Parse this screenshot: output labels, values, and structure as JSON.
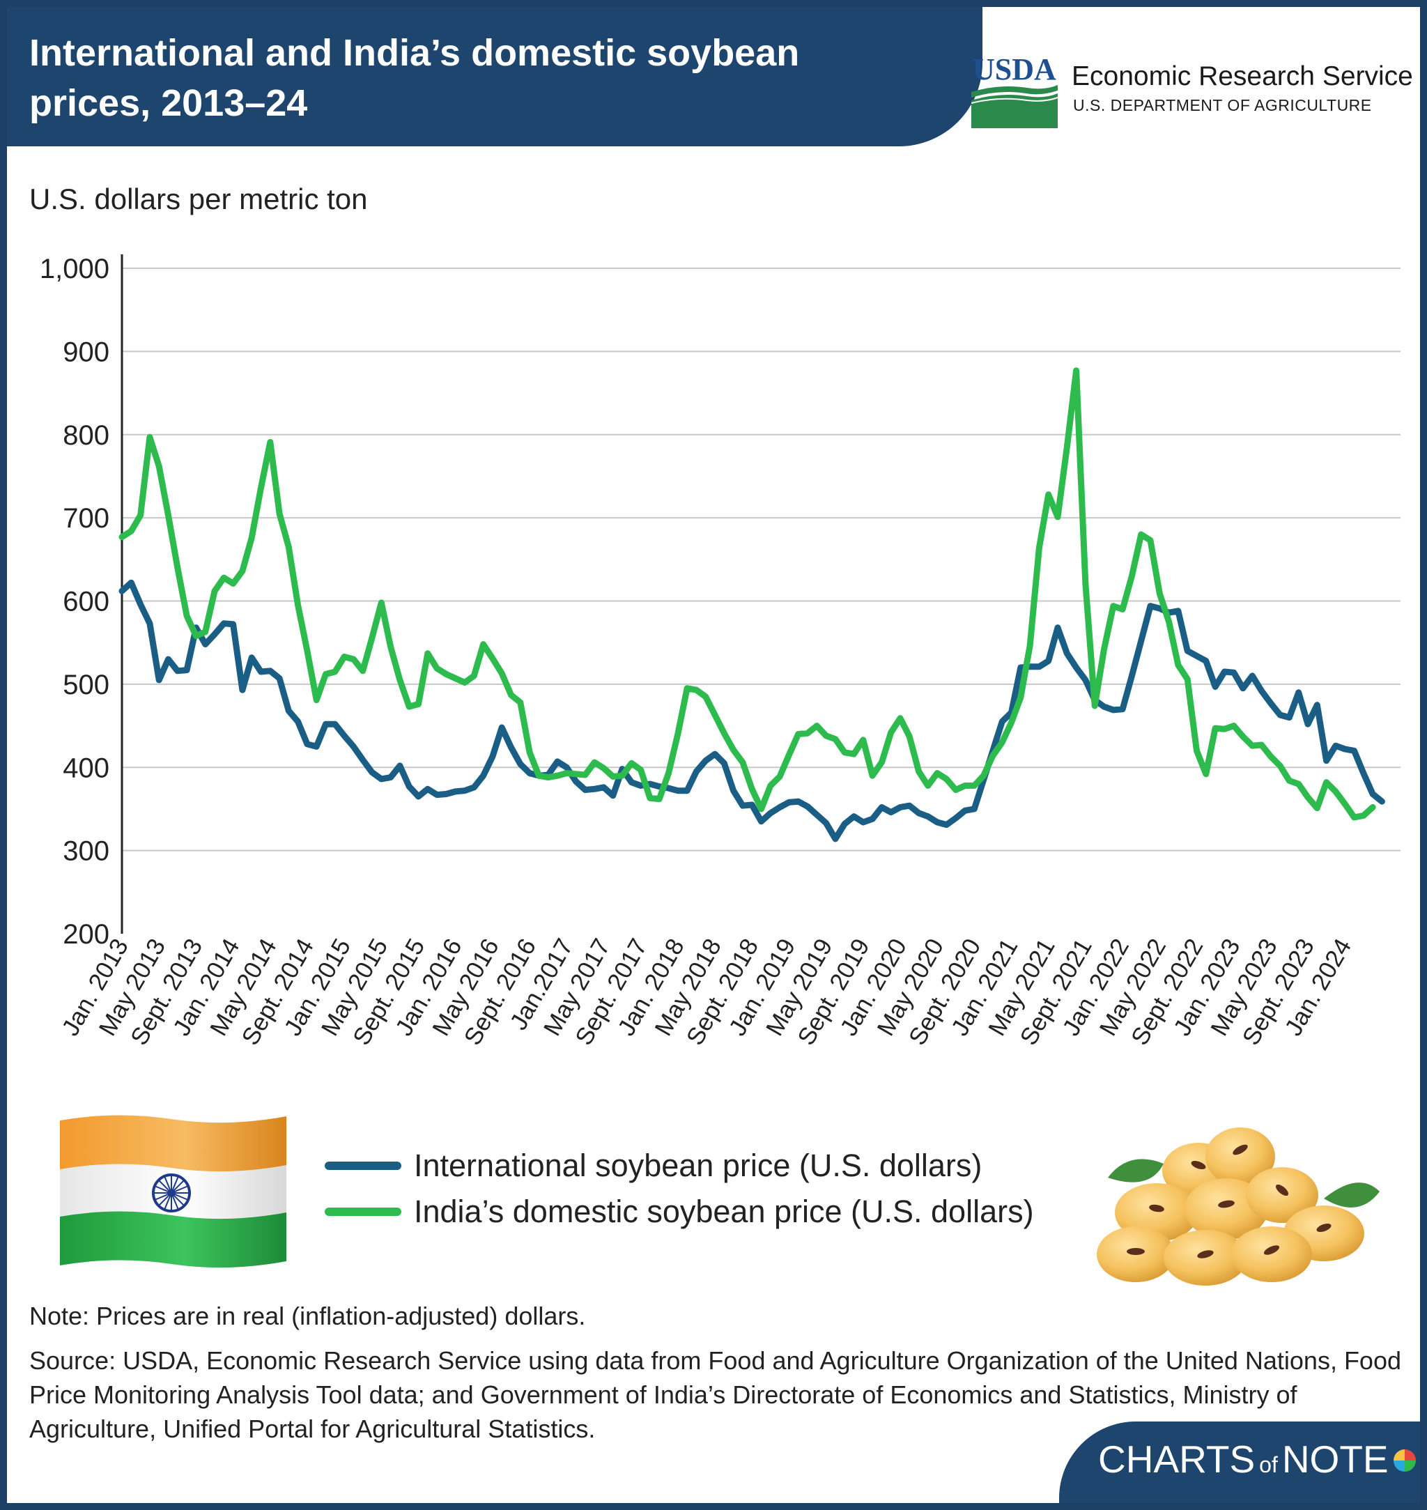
{
  "header": {
    "title": "International and India’s domestic soybean prices, 2013–24",
    "usda_logo_text": "USDA",
    "agency_name": "Economic Research Service",
    "department": "U.S. DEPARTMENT OF AGRICULTURE"
  },
  "footer": {
    "note": "Note: Prices are in real (inflation-adjusted) dollars.",
    "source": "Source: USDA, Economic Research Service using data from Food and Agriculture Organization of the United Nations, Food Price Monitoring Analysis Tool data; and Government of India’s Directorate of Economics and Statistics, Ministry of Agriculture, Unified Portal for Agricultural Statistics.",
    "brand_left": "CHARTS",
    "brand_mid": "of",
    "brand_right": "NOTE"
  },
  "colors": {
    "navy": "#1d456d",
    "international": "#1a5e86",
    "india": "#2dbb4e",
    "grid": "#c8c8c8"
  },
  "icons": [
    "india-flag-icon",
    "soybeans-icon",
    "usda-logo-icon",
    "pie-chart-icon"
  ],
  "chart_data": {
    "type": "line",
    "title": "International and India’s domestic soybean prices, 2013–24",
    "ylabel": "U.S. dollars per metric ton",
    "xlabel": "",
    "ylim": [
      200,
      1000
    ],
    "yticks": [
      200,
      300,
      400,
      500,
      600,
      700,
      800,
      900,
      1000
    ],
    "ytick_labels": [
      "200",
      "300",
      "400",
      "500",
      "600",
      "700",
      "800",
      "900",
      "1,000"
    ],
    "xrange_months": [
      0,
      138
    ],
    "grid": "horizontal",
    "legend_position": "bottom-center",
    "xticks": [
      {
        "month": 0,
        "label": "Jan. 2013"
      },
      {
        "month": 4,
        "label": "May 2013"
      },
      {
        "month": 8,
        "label": "Sept. 2013"
      },
      {
        "month": 12,
        "label": "Jan. 2014"
      },
      {
        "month": 16,
        "label": "May 2014"
      },
      {
        "month": 20,
        "label": "Sept. 2014"
      },
      {
        "month": 24,
        "label": "Jan. 2015"
      },
      {
        "month": 28,
        "label": "May 2015"
      },
      {
        "month": 32,
        "label": "Sept. 2015"
      },
      {
        "month": 36,
        "label": "Jan. 2016"
      },
      {
        "month": 40,
        "label": "May 2016"
      },
      {
        "month": 44,
        "label": "Sept. 2016"
      },
      {
        "month": 48,
        "label": "Jan.2017"
      },
      {
        "month": 52,
        "label": "May 2017"
      },
      {
        "month": 56,
        "label": "Sept. 2017"
      },
      {
        "month": 60,
        "label": "Jan. 2018"
      },
      {
        "month": 64,
        "label": "May 2018"
      },
      {
        "month": 68,
        "label": "Sept. 2018"
      },
      {
        "month": 72,
        "label": "Jan. 2019"
      },
      {
        "month": 76,
        "label": "May 2019"
      },
      {
        "month": 80,
        "label": "Sept. 2019"
      },
      {
        "month": 84,
        "label": "Jan. 2020"
      },
      {
        "month": 88,
        "label": "May 2020"
      },
      {
        "month": 92,
        "label": "Sept. 2020"
      },
      {
        "month": 96,
        "label": "Jan. 2021"
      },
      {
        "month": 100,
        "label": "May 2021"
      },
      {
        "month": 104,
        "label": "Sept. 2021"
      },
      {
        "month": 108,
        "label": "Jan. 2022"
      },
      {
        "month": 112,
        "label": "May 2022"
      },
      {
        "month": 116,
        "label": "Sept. 2022"
      },
      {
        "month": 120,
        "label": "Jan. 2023"
      },
      {
        "month": 124,
        "label": "May 2023"
      },
      {
        "month": 128,
        "label": "Sept. 2023"
      },
      {
        "month": 132,
        "label": "Jan. 2024"
      }
    ],
    "series": [
      {
        "name": "International soybean price (U.S. dollars)",
        "color": "#1a5e86",
        "points": [
          [
            0,
            612
          ],
          [
            1,
            622
          ],
          [
            2,
            596
          ],
          [
            3,
            573
          ],
          [
            4,
            505
          ],
          [
            5,
            530
          ],
          [
            6,
            516
          ],
          [
            7,
            517
          ],
          [
            8,
            568
          ],
          [
            9,
            548
          ],
          [
            10,
            560
          ],
          [
            11,
            573
          ],
          [
            12,
            572
          ],
          [
            13,
            493
          ],
          [
            14,
            532
          ],
          [
            15,
            515
          ],
          [
            16,
            516
          ],
          [
            17,
            507
          ],
          [
            18,
            468
          ],
          [
            19,
            455
          ],
          [
            20,
            428
          ],
          [
            21,
            425
          ],
          [
            22,
            452
          ],
          [
            23,
            452
          ],
          [
            24,
            438
          ],
          [
            25,
            425
          ],
          [
            26,
            409
          ],
          [
            27,
            394
          ],
          [
            28,
            386
          ],
          [
            29,
            388
          ],
          [
            30,
            402
          ],
          [
            31,
            377
          ],
          [
            32,
            365
          ],
          [
            33,
            374
          ],
          [
            34,
            367
          ],
          [
            35,
            368
          ],
          [
            36,
            371
          ],
          [
            37,
            372
          ],
          [
            38,
            376
          ],
          [
            39,
            390
          ],
          [
            40,
            413
          ],
          [
            41,
            448
          ],
          [
            42,
            424
          ],
          [
            43,
            404
          ],
          [
            44,
            393
          ],
          [
            45,
            390
          ],
          [
            46,
            391
          ],
          [
            47,
            407
          ],
          [
            48,
            400
          ],
          [
            49,
            383
          ],
          [
            50,
            373
          ],
          [
            51,
            374
          ],
          [
            52,
            376
          ],
          [
            53,
            366
          ],
          [
            54,
            398
          ],
          [
            55,
            382
          ],
          [
            56,
            378
          ],
          [
            57,
            380
          ],
          [
            58,
            377
          ],
          [
            59,
            375
          ],
          [
            60,
            372
          ],
          [
            61,
            372
          ],
          [
            62,
            395
          ],
          [
            63,
            408
          ],
          [
            64,
            416
          ],
          [
            65,
            405
          ],
          [
            66,
            372
          ],
          [
            67,
            354
          ],
          [
            68,
            355
          ],
          [
            69,
            335
          ],
          [
            70,
            345
          ],
          [
            71,
            352
          ],
          [
            72,
            358
          ],
          [
            73,
            359
          ],
          [
            74,
            353
          ],
          [
            75,
            343
          ],
          [
            76,
            333
          ],
          [
            77,
            314
          ],
          [
            78,
            332
          ],
          [
            79,
            341
          ],
          [
            80,
            334
          ],
          [
            81,
            338
          ],
          [
            82,
            352
          ],
          [
            83,
            346
          ],
          [
            84,
            352
          ],
          [
            85,
            354
          ],
          [
            86,
            345
          ],
          [
            87,
            341
          ],
          [
            88,
            334
          ],
          [
            89,
            331
          ],
          [
            90,
            339
          ],
          [
            91,
            348
          ],
          [
            92,
            350
          ],
          [
            93,
            385
          ],
          [
            94,
            420
          ],
          [
            95,
            455
          ],
          [
            96,
            466
          ],
          [
            97,
            520
          ],
          [
            98,
            521
          ],
          [
            99,
            521
          ],
          [
            100,
            528
          ],
          [
            101,
            568
          ],
          [
            102,
            537
          ],
          [
            103,
            520
          ],
          [
            104,
            505
          ],
          [
            105,
            481
          ],
          [
            106,
            473
          ],
          [
            107,
            469
          ],
          [
            108,
            470
          ],
          [
            109,
            510
          ],
          [
            110,
            552
          ],
          [
            111,
            594
          ],
          [
            112,
            591
          ],
          [
            113,
            586
          ],
          [
            114,
            588
          ],
          [
            115,
            540
          ],
          [
            116,
            534
          ],
          [
            117,
            528
          ],
          [
            118,
            497
          ],
          [
            119,
            515
          ],
          [
            120,
            514
          ],
          [
            121,
            495
          ],
          [
            122,
            510
          ],
          [
            123,
            492
          ],
          [
            124,
            477
          ],
          [
            125,
            463
          ],
          [
            126,
            460
          ],
          [
            127,
            490
          ],
          [
            128,
            452
          ],
          [
            129,
            475
          ],
          [
            130,
            408
          ],
          [
            131,
            426
          ],
          [
            132,
            422
          ],
          [
            133,
            420
          ],
          [
            134,
            393
          ],
          [
            135,
            368
          ],
          [
            136,
            359
          ]
        ]
      },
      {
        "name": "India’s domestic soybean price (U.S. dollars)",
        "color": "#2dbb4e",
        "points": [
          [
            0,
            677
          ],
          [
            1,
            684
          ],
          [
            2,
            703
          ],
          [
            3,
            797
          ],
          [
            4,
            762
          ],
          [
            5,
            703
          ],
          [
            6,
            640
          ],
          [
            7,
            582
          ],
          [
            8,
            558
          ],
          [
            9,
            563
          ],
          [
            10,
            612
          ],
          [
            11,
            628
          ],
          [
            12,
            621
          ],
          [
            13,
            636
          ],
          [
            14,
            676
          ],
          [
            15,
            736
          ],
          [
            16,
            791
          ],
          [
            17,
            705
          ],
          [
            18,
            665
          ],
          [
            19,
            595
          ],
          [
            20,
            540
          ],
          [
            21,
            481
          ],
          [
            22,
            512
          ],
          [
            23,
            515
          ],
          [
            24,
            533
          ],
          [
            25,
            530
          ],
          [
            26,
            516
          ],
          [
            27,
            556
          ],
          [
            28,
            598
          ],
          [
            29,
            545
          ],
          [
            30,
            505
          ],
          [
            31,
            473
          ],
          [
            32,
            476
          ],
          [
            33,
            537
          ],
          [
            34,
            519
          ],
          [
            35,
            512
          ],
          [
            36,
            507
          ],
          [
            37,
            502
          ],
          [
            38,
            510
          ],
          [
            39,
            548
          ],
          [
            40,
            531
          ],
          [
            41,
            513
          ],
          [
            42,
            487
          ],
          [
            43,
            478
          ],
          [
            44,
            418
          ],
          [
            45,
            390
          ],
          [
            46,
            388
          ],
          [
            47,
            390
          ],
          [
            48,
            393
          ],
          [
            49,
            392
          ],
          [
            50,
            391
          ],
          [
            51,
            406
          ],
          [
            52,
            399
          ],
          [
            53,
            389
          ],
          [
            54,
            390
          ],
          [
            55,
            405
          ],
          [
            56,
            397
          ],
          [
            57,
            363
          ],
          [
            58,
            362
          ],
          [
            59,
            393
          ],
          [
            60,
            440
          ],
          [
            61,
            495
          ],
          [
            62,
            493
          ],
          [
            63,
            485
          ],
          [
            64,
            463
          ],
          [
            65,
            441
          ],
          [
            66,
            421
          ],
          [
            67,
            406
          ],
          [
            68,
            374
          ],
          [
            69,
            350
          ],
          [
            70,
            378
          ],
          [
            71,
            389
          ],
          [
            72,
            415
          ],
          [
            73,
            440
          ],
          [
            74,
            441
          ],
          [
            75,
            450
          ],
          [
            76,
            438
          ],
          [
            77,
            434
          ],
          [
            78,
            418
          ],
          [
            79,
            416
          ],
          [
            80,
            433
          ],
          [
            81,
            390
          ],
          [
            82,
            406
          ],
          [
            83,
            442
          ],
          [
            84,
            459
          ],
          [
            85,
            437
          ],
          [
            86,
            395
          ],
          [
            87,
            378
          ],
          [
            88,
            393
          ],
          [
            89,
            386
          ],
          [
            90,
            373
          ],
          [
            91,
            378
          ],
          [
            92,
            378
          ],
          [
            93,
            390
          ],
          [
            94,
            414
          ],
          [
            95,
            430
          ],
          [
            96,
            454
          ],
          [
            97,
            484
          ],
          [
            98,
            546
          ],
          [
            99,
            664
          ],
          [
            100,
            728
          ],
          [
            101,
            701
          ],
          [
            102,
            785
          ],
          [
            103,
            877
          ],
          [
            104,
            620
          ],
          [
            105,
            474
          ],
          [
            106,
            542
          ],
          [
            107,
            594
          ],
          [
            108,
            590
          ],
          [
            109,
            630
          ],
          [
            110,
            680
          ],
          [
            111,
            673
          ],
          [
            112,
            609
          ],
          [
            113,
            575
          ],
          [
            114,
            523
          ],
          [
            115,
            506
          ],
          [
            116,
            420
          ],
          [
            117,
            392
          ],
          [
            118,
            447
          ],
          [
            119,
            446
          ],
          [
            120,
            450
          ],
          [
            121,
            437
          ],
          [
            122,
            426
          ],
          [
            123,
            427
          ],
          [
            124,
            413
          ],
          [
            125,
            402
          ],
          [
            126,
            384
          ],
          [
            127,
            380
          ],
          [
            128,
            364
          ],
          [
            129,
            351
          ],
          [
            130,
            382
          ],
          [
            131,
            371
          ],
          [
            132,
            356
          ],
          [
            133,
            340
          ],
          [
            134,
            342
          ],
          [
            135,
            352
          ]
        ]
      }
    ]
  }
}
